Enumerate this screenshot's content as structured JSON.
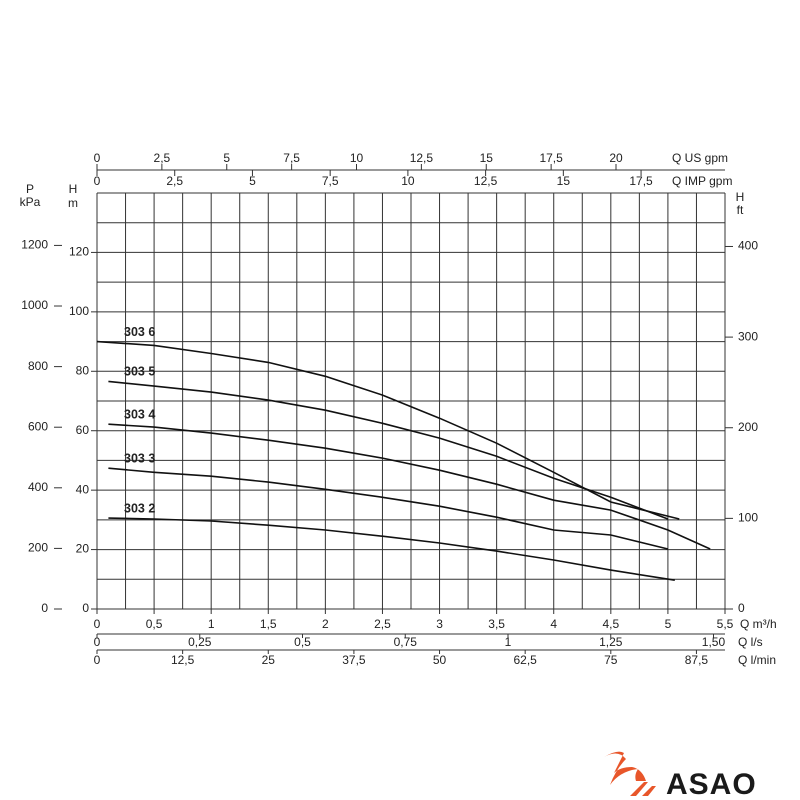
{
  "chart_data": {
    "type": "line",
    "x_label": "Q m³/h",
    "y_label": [
      "H",
      "m"
    ],
    "xlim": [
      0,
      5.5
    ],
    "xticks": [
      0,
      {
        "value": 0.5,
        "label": "0,5"
      },
      1,
      {
        "value": 1.5,
        "label": "1,5"
      },
      2,
      {
        "value": 2.5,
        "label": "2,5"
      },
      3,
      {
        "value": 3.5,
        "label": "3,5"
      },
      4,
      {
        "value": 4.5,
        "label": "4,5"
      },
      5,
      {
        "value": 5.5,
        "label": "5,5"
      }
    ],
    "ylim": [
      0,
      140
    ],
    "yticks": [
      0,
      20,
      40,
      60,
      80,
      100,
      120
    ],
    "xgrid": [
      0,
      0.25,
      0.5,
      0.75,
      1,
      1.25,
      1.5,
      1.75,
      2,
      2.25,
      2.5,
      2.75,
      3,
      3.25,
      3.5,
      3.75,
      4,
      4.25,
      4.5,
      4.75,
      5,
      5.25,
      5.5
    ],
    "ygrid": [
      0,
      10,
      20,
      30,
      40,
      50,
      60,
      70,
      80,
      90,
      100,
      110,
      120,
      130,
      140
    ],
    "secondary_axes": [
      {
        "label": "Q US gpm",
        "position": "top-outer",
        "lim": [
          0,
          24.2
        ],
        "ticks": [
          0,
          {
            "value": 2.5,
            "label": "2,5"
          },
          5,
          {
            "value": 7.5,
            "label": "7,5"
          },
          10,
          {
            "value": 12.5,
            "label": "12,5"
          },
          15,
          {
            "value": 17.5,
            "label": "17,5"
          },
          20
        ]
      },
      {
        "label": "Q IMP gpm",
        "position": "top-inner",
        "lim": [
          0,
          20.2
        ],
        "ticks": [
          0,
          {
            "value": 2.5,
            "label": "2,5"
          },
          5,
          {
            "value": 7.5,
            "label": "7,5"
          },
          10,
          {
            "value": 12.5,
            "label": "12,5"
          },
          15,
          {
            "value": 17.5,
            "label": "17,5"
          }
        ]
      },
      {
        "label": "Q l/s",
        "position": "bottom-inner",
        "lim": [
          0,
          1.528
        ],
        "ticks": [
          0,
          {
            "value": 0.25,
            "label": "0,25"
          },
          {
            "value": 0.5,
            "label": "0,5"
          },
          {
            "value": 0.75,
            "label": "0,75"
          },
          1,
          {
            "value": 1.25,
            "label": "1,25"
          },
          {
            "value": 1.5,
            "label": "1,50"
          }
        ]
      },
      {
        "label": "Q l/min",
        "position": "bottom-outer",
        "lim": [
          0,
          91.67
        ],
        "ticks": [
          0,
          {
            "value": 12.5,
            "label": "12,5"
          },
          25,
          {
            "value": 37.5,
            "label": "37,5"
          },
          50,
          {
            "value": 62.5,
            "label": "62,5"
          },
          75,
          {
            "value": 87.5,
            "label": "87,5"
          }
        ]
      },
      {
        "label": [
          "P",
          "kPa"
        ],
        "position": "left-outer",
        "lim": [
          0,
          1373
        ],
        "ticks": [
          0,
          200,
          400,
          600,
          800,
          1000,
          1200
        ]
      },
      {
        "label": [
          "H",
          "ft"
        ],
        "position": "right",
        "lim": [
          0,
          459
        ],
        "ticks": [
          0,
          100,
          200,
          300,
          400
        ]
      }
    ],
    "series": [
      {
        "name": "303 6",
        "color": "#111111",
        "x": [
          0,
          0.5,
          1,
          1.5,
          2,
          2.5,
          3,
          3.5,
          4,
          4.5,
          5.1
        ],
        "values": [
          90,
          88.7,
          86,
          83,
          78.3,
          72,
          64.2,
          55.8,
          46,
          36,
          30.3
        ]
      },
      {
        "name": "303 5",
        "color": "#111111",
        "x": [
          0.1,
          0.5,
          1,
          1.5,
          2,
          2.5,
          3,
          3.5,
          4,
          4.5,
          5
        ],
        "values": [
          76.6,
          75,
          73,
          70.3,
          66.9,
          62.5,
          57.5,
          51.4,
          44,
          37.6,
          30.3
        ]
      },
      {
        "name": "303 4",
        "color": "#111111",
        "x": [
          0.1,
          0.5,
          1,
          1.5,
          2,
          2.5,
          3,
          3.5,
          4,
          4.5,
          5,
          5.37
        ],
        "values": [
          62.2,
          61.2,
          59.2,
          56.8,
          54.1,
          50.8,
          46.7,
          42,
          36.6,
          33.3,
          26.6,
          20.2
        ]
      },
      {
        "name": "303 3",
        "color": "#111111",
        "x": [
          0.1,
          0.5,
          1,
          1.5,
          2,
          2.5,
          3,
          3.5,
          4,
          4.5,
          5
        ],
        "values": [
          47.4,
          46,
          44.7,
          42.7,
          40.3,
          37.6,
          34.6,
          30.9,
          26.6,
          24.9,
          20.2
        ]
      },
      {
        "name": "303 2",
        "color": "#111111",
        "x": [
          0.1,
          0.5,
          1,
          1.5,
          2,
          2.5,
          3,
          3.5,
          4,
          4.5,
          5.06
        ],
        "values": [
          30.6,
          30.3,
          29.6,
          28.2,
          26.6,
          24.5,
          22.2,
          19.5,
          16.5,
          13.1,
          9.7
        ]
      }
    ]
  },
  "logo": {
    "text": "ASAO"
  }
}
